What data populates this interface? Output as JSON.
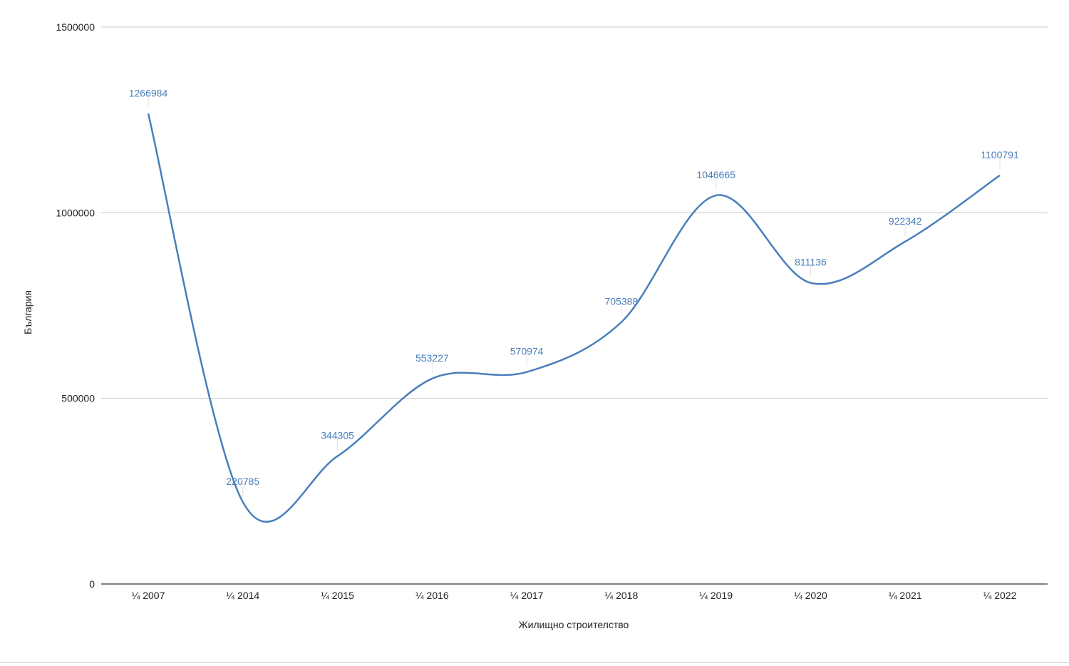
{
  "chart_data": {
    "type": "line",
    "categories": [
      "¼ 2007",
      "¼ 2014",
      "¼ 2015",
      "¼ 2016",
      "¼ 2017",
      "¼ 2018",
      "¼ 2019",
      "¼ 2020",
      "¼ 2021",
      "¼ 2022"
    ],
    "series": [
      {
        "values": [
          1266984,
          220785,
          344305,
          553227,
          570974,
          705388,
          1046665,
          811136,
          922342,
          1100791
        ]
      }
    ],
    "data_labels": [
      "1266984",
      "220785",
      "344305",
      "553227",
      "570974",
      "705388",
      "1046665",
      "811136",
      "922342",
      "1100791"
    ],
    "y_ticks": [
      "0",
      "500000",
      "1000000",
      "1500000"
    ],
    "xlabel": "Жилищно строителство",
    "ylabel": "България",
    "ylim": [
      0,
      1500000
    ],
    "grid": true,
    "smooth": true,
    "line_color": "#4a7ebb",
    "label_color": "#4a7ebb",
    "gridline_color": "#cccccc",
    "axis_color": "#333333"
  }
}
